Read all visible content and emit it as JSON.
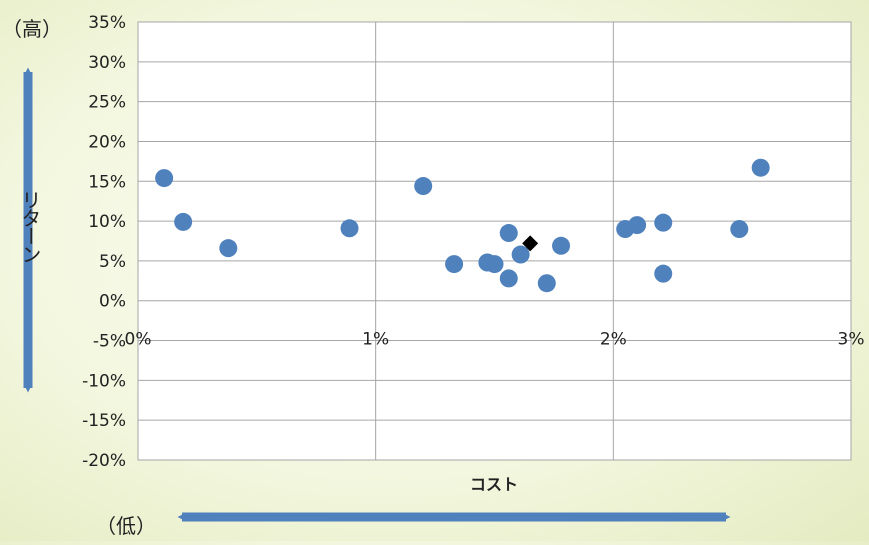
{
  "chart_data": {
    "type": "scatter",
    "xlabel": "コスト",
    "ylabel": "リターン",
    "x_tick_labels": [
      "0%",
      "1%",
      "2%",
      "3%"
    ],
    "y_tick_labels": [
      "35%",
      "30%",
      "25%",
      "20%",
      "15%",
      "10%",
      "5%",
      "0%",
      "-5%",
      "-10%",
      "-15%",
      "-20%"
    ],
    "xlim": [
      0,
      3
    ],
    "ylim": [
      -20,
      35
    ],
    "x_unit": "%",
    "y_unit": "%",
    "grid": true,
    "y_axis_high_label": "（高）",
    "x_axis_low_label": "（低）",
    "colors": {
      "points": "#4f81bd",
      "highlight": "#000000",
      "arrows": "#4f81bd",
      "grid": "#a6a6a6"
    },
    "series": [
      {
        "marker": "circle",
        "points": [
          {
            "x": 0.11,
            "y": 15.4
          },
          {
            "x": 0.19,
            "y": 9.9
          },
          {
            "x": 0.38,
            "y": 6.6
          },
          {
            "x": 0.89,
            "y": 9.1
          },
          {
            "x": 1.2,
            "y": 14.4
          },
          {
            "x": 1.33,
            "y": 4.6
          },
          {
            "x": 1.47,
            "y": 4.8
          },
          {
            "x": 1.5,
            "y": 4.6
          },
          {
            "x": 1.56,
            "y": 8.5
          },
          {
            "x": 1.56,
            "y": 2.8
          },
          {
            "x": 1.61,
            "y": 5.8
          },
          {
            "x": 1.72,
            "y": 2.2
          },
          {
            "x": 1.78,
            "y": 6.9
          },
          {
            "x": 2.05,
            "y": 9.0
          },
          {
            "x": 2.1,
            "y": 9.5
          },
          {
            "x": 2.21,
            "y": 9.8
          },
          {
            "x": 2.21,
            "y": 3.4
          },
          {
            "x": 2.53,
            "y": 9.0
          },
          {
            "x": 2.62,
            "y": 16.7
          }
        ]
      },
      {
        "marker": "diamond",
        "points": [
          {
            "x": 1.65,
            "y": 7.2
          }
        ]
      }
    ]
  }
}
